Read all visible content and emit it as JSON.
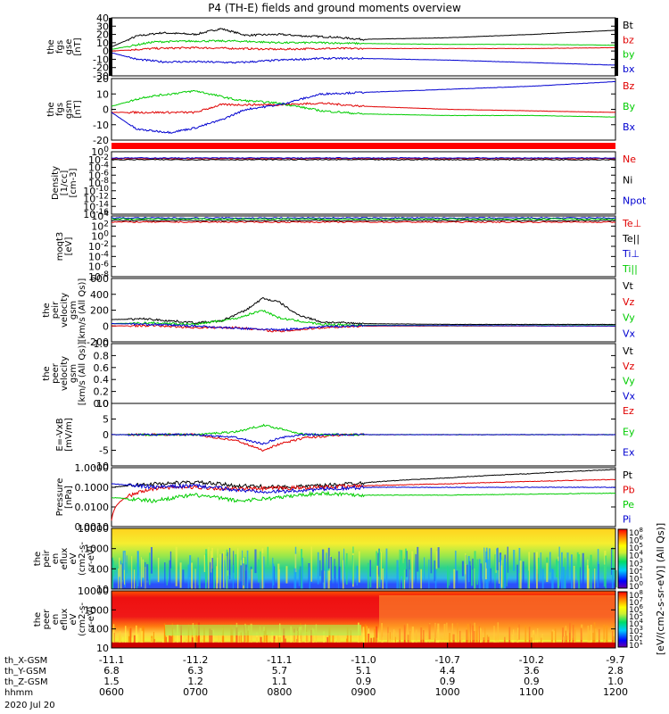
{
  "title": "P4 (TH-E) fields and ground moments overview",
  "colors": {
    "black": "#000000",
    "red": "#e00000",
    "green": "#00cc00",
    "blue": "#0000d0"
  },
  "x_axis": {
    "ticks": [
      {
        "t": "0600",
        "x": "-11.1",
        "y": "6.8",
        "z": "1.5"
      },
      {
        "t": "0700",
        "x": "-11.2",
        "y": "6.3",
        "z": "1.2"
      },
      {
        "t": "0800",
        "x": "-11.1",
        "y": "5.7",
        "z": "1.1"
      },
      {
        "t": "0900",
        "x": "-11.0",
        "y": "5.1",
        "z": "0.9"
      },
      {
        "t": "1000",
        "x": "-10.7",
        "y": "4.4",
        "z": "0.9"
      },
      {
        "t": "1100",
        "x": "-10.2",
        "y": "3.6",
        "z": "0.9"
      },
      {
        "t": "1200",
        "x": "-9.7",
        "y": "2.8",
        "z": "1.0"
      }
    ],
    "row_labels": [
      "th_X-GSM",
      "th_Y-GSM",
      "th_Z-GSM",
      "hhmm",
      "2020 Jul 20"
    ]
  },
  "colorbar": {
    "label": "[eV/(cm2-s-sr-eV)] (All Qs)]",
    "top_ticks": [
      "10^8",
      "10^6",
      "10^5",
      "10^4",
      "10^3",
      "10^2",
      "10^1",
      "10^0"
    ],
    "bottom_ticks": [
      "10^8",
      "10^7",
      "10^6",
      "10^5",
      "10^4",
      "10^3",
      "10^2",
      "10^1"
    ]
  },
  "chart_data": [
    {
      "type": "line",
      "panel": "fgs_gse",
      "ylabel": [
        "the",
        "fgs",
        "gse",
        "[nT]"
      ],
      "ylim": [
        -30,
        40
      ],
      "yticks": [
        "40",
        "30",
        "20",
        "10",
        "0",
        "-10",
        "-20",
        "-30"
      ],
      "series": [
        {
          "name": "Bt",
          "color": "#000000",
          "x": [
            6.0,
            6.3,
            6.6,
            7.0,
            7.3,
            7.6,
            8.0,
            8.3,
            8.6,
            9.0,
            10.0,
            11.0,
            12.0
          ],
          "y": [
            5,
            18,
            22,
            20,
            27,
            19,
            20,
            18,
            17,
            14,
            16,
            20,
            25
          ]
        },
        {
          "name": "bz",
          "color": "#e00000",
          "x": [
            6.0,
            6.5,
            7.0,
            7.5,
            8.0,
            8.5,
            9.0,
            10.0,
            11.0,
            12.0
          ],
          "y": [
            0,
            3,
            4,
            3,
            2,
            3,
            3,
            3,
            3,
            4
          ]
        },
        {
          "name": "by",
          "color": "#00cc00",
          "x": [
            6.0,
            6.5,
            7.0,
            7.5,
            8.0,
            8.5,
            9.0,
            10.0,
            11.0,
            12.0
          ],
          "y": [
            2,
            11,
            12,
            12,
            10,
            10,
            9,
            8,
            8,
            7
          ]
        },
        {
          "name": "bx",
          "color": "#0000d0",
          "x": [
            6.0,
            6.3,
            6.6,
            7.0,
            7.5,
            8.0,
            8.5,
            9.0,
            10.0,
            11.0,
            12.0
          ],
          "y": [
            -2,
            -10,
            -13,
            -13,
            -14,
            -11,
            -9,
            -9,
            -11,
            -14,
            -17
          ]
        }
      ]
    },
    {
      "type": "line",
      "panel": "fgs_gsm",
      "ylabel": [
        "the",
        "fgs",
        "gsm",
        "[nT]"
      ],
      "ylim": [
        -20,
        20
      ],
      "yticks": [
        "20",
        "10",
        "0",
        "-10",
        "-20"
      ],
      "series": [
        {
          "name": "Bz",
          "color": "#e00000",
          "x": [
            6.0,
            6.5,
            7.0,
            7.3,
            7.6,
            8.0,
            8.5,
            9.0,
            10.0,
            11.0,
            12.0
          ],
          "y": [
            -2,
            -2,
            -2,
            3,
            3,
            3,
            4,
            2,
            0,
            -1,
            -2
          ]
        },
        {
          "name": "By",
          "color": "#00cc00",
          "x": [
            6.0,
            6.4,
            7.0,
            7.5,
            8.0,
            8.5,
            9.0,
            10.0,
            11.0,
            12.0
          ],
          "y": [
            2,
            8,
            12,
            6,
            4,
            -1,
            -3,
            -4,
            -4,
            -5
          ]
        },
        {
          "name": "Bx",
          "color": "#0000d0",
          "x": [
            6.0,
            6.3,
            6.7,
            7.0,
            7.3,
            7.6,
            8.0,
            8.5,
            9.0,
            10.0,
            11.0,
            12.0
          ],
          "y": [
            -2,
            -13,
            -15,
            -12,
            -7,
            0,
            3,
            10,
            11,
            13,
            15,
            18
          ]
        }
      ]
    },
    {
      "type": "line",
      "panel": "density",
      "ylabel": [
        "Density",
        "[1/cc]",
        "[cm-3]"
      ],
      "ylim_log": [
        -16,
        2
      ],
      "yticks": [
        "10^0",
        "10^-2",
        "10^-4",
        "10^-6",
        "10^-8",
        "10^-10",
        "10^-12",
        "10^-14",
        "10^-16"
      ],
      "series": [
        {
          "name": "Ne",
          "color": "#e00000",
          "level": 0.0
        },
        {
          "name": "Ni",
          "color": "#000000",
          "level": -0.3
        },
        {
          "name": "Npot",
          "color": "#0000d0",
          "level": 0.2
        }
      ]
    },
    {
      "type": "line",
      "panel": "temperature",
      "ylabel": [
        "moqt3",
        "[eV]"
      ],
      "ylim_log": [
        -8,
        4
      ],
      "yticks": [
        "10^4",
        "10^2",
        "10^0",
        "10^-2",
        "10^-4",
        "10^-6",
        "10^-8"
      ],
      "series": [
        {
          "name": "Te⊥",
          "color": "#e00000",
          "level": 2.8
        },
        {
          "name": "Te||",
          "color": "#000000",
          "level": 3.1
        },
        {
          "name": "Ti⊥",
          "color": "#0000d0",
          "level": 3.6
        },
        {
          "name": "Ti||",
          "color": "#00cc00",
          "level": 3.4
        }
      ]
    },
    {
      "type": "line",
      "panel": "peir_velocity",
      "ylabel": [
        "the",
        "peir",
        "velocity",
        "gsm",
        "[km/s (All Qs)]"
      ],
      "ylim": [
        -200,
        600
      ],
      "yticks": [
        "600",
        "400",
        "200",
        "0",
        "-200"
      ],
      "series": [
        {
          "name": "Vt",
          "color": "#000000",
          "x": [
            6.0,
            6.4,
            7.0,
            7.3,
            7.6,
            7.8,
            8.0,
            8.2,
            8.5,
            9.0,
            10.0,
            11.0,
            12.0
          ],
          "y": [
            80,
            90,
            40,
            60,
            200,
            350,
            300,
            150,
            50,
            30,
            20,
            20,
            20
          ]
        },
        {
          "name": "Vz",
          "color": "#e00000",
          "x": [
            6.0,
            6.5,
            7.0,
            7.5,
            8.0,
            8.5,
            9.0,
            10.0,
            12.0
          ],
          "y": [
            0,
            5,
            -20,
            -20,
            -70,
            -20,
            0,
            0,
            0
          ]
        },
        {
          "name": "Vy",
          "color": "#00cc00",
          "x": [
            6.0,
            6.5,
            7.0,
            7.5,
            7.8,
            8.0,
            8.5,
            9.0,
            10.0,
            12.0
          ],
          "y": [
            30,
            40,
            20,
            100,
            200,
            100,
            20,
            10,
            5,
            5
          ]
        },
        {
          "name": "Vx",
          "color": "#0000d0",
          "x": [
            6.0,
            6.5,
            7.0,
            7.5,
            8.0,
            8.5,
            9.0,
            10.0,
            12.0
          ],
          "y": [
            30,
            20,
            0,
            -30,
            -50,
            -10,
            5,
            5,
            0
          ]
        }
      ]
    },
    {
      "type": "line",
      "panel": "peer_velocity",
      "ylabel": [
        "the",
        "peer",
        "velocity",
        "gsm",
        "[km/s (All Qs)]"
      ],
      "ylim": [
        0,
        1
      ],
      "yticks": [
        "1.0",
        "0.8",
        "0.6",
        "0.4",
        "0.2",
        "0.0"
      ],
      "series": [
        {
          "name": "Vt",
          "color": "#000000"
        },
        {
          "name": "Vz",
          "color": "#e00000"
        },
        {
          "name": "Vy",
          "color": "#00cc00"
        },
        {
          "name": "Vx",
          "color": "#0000d0"
        }
      ]
    },
    {
      "type": "line",
      "panel": "efield",
      "ylabel": [
        "E=-VxB",
        "[mV/m]"
      ],
      "ylim": [
        -10,
        10
      ],
      "yticks": [
        "10",
        "5",
        "0",
        "-5",
        "-10"
      ],
      "series": [
        {
          "name": "Ez",
          "color": "#e00000",
          "x": [
            6.0,
            7.0,
            7.5,
            7.8,
            8.0,
            8.3,
            8.8,
            12.0
          ],
          "y": [
            0,
            0,
            -2,
            -5,
            -3,
            -1,
            0,
            0
          ]
        },
        {
          "name": "Ey",
          "color": "#00cc00",
          "x": [
            6.0,
            7.0,
            7.5,
            7.8,
            8.0,
            8.3,
            8.8,
            12.0
          ],
          "y": [
            0,
            0,
            1,
            3,
            2,
            0,
            0,
            0
          ]
        },
        {
          "name": "Ex",
          "color": "#0000d0",
          "x": [
            6.0,
            7.0,
            7.5,
            7.8,
            8.0,
            8.3,
            8.8,
            12.0
          ],
          "y": [
            0,
            0,
            -1,
            -3,
            -1,
            0,
            0,
            0
          ]
        }
      ]
    },
    {
      "type": "line",
      "panel": "pressure",
      "ylabel": [
        "Pressure",
        "[nPa]"
      ],
      "ylim_log": [
        -3,
        0
      ],
      "yticks": [
        "1.0000",
        "0.1000",
        "0.0100",
        "0.0010"
      ],
      "series": [
        {
          "name": "Pt",
          "color": "#000000",
          "x": [
            6.0,
            6.5,
            7.0,
            7.5,
            8.0,
            8.5,
            9.0,
            10.0,
            11.0,
            12.0
          ],
          "y": [
            0.1,
            0.15,
            0.18,
            0.12,
            0.1,
            0.12,
            0.17,
            0.3,
            0.5,
            0.8
          ]
        },
        {
          "name": "Pb",
          "color": "#e00000",
          "x": [
            6.0,
            6.3,
            6.6,
            7.0,
            7.5,
            8.0,
            8.5,
            9.0,
            10.0,
            11.0,
            12.0
          ],
          "y": [
            0.002,
            0.05,
            0.1,
            0.1,
            0.08,
            0.09,
            0.1,
            0.12,
            0.15,
            0.2,
            0.25
          ]
        },
        {
          "name": "Pe",
          "color": "#00cc00",
          "x": [
            6.0,
            6.5,
            7.0,
            7.5,
            8.0,
            8.5,
            9.0,
            10.0,
            11.0,
            12.0
          ],
          "y": [
            0.03,
            0.02,
            0.04,
            0.02,
            0.03,
            0.05,
            0.04,
            0.04,
            0.045,
            0.05
          ]
        },
        {
          "name": "Pi",
          "color": "#0000d0",
          "x": [
            6.0,
            6.5,
            7.0,
            7.5,
            8.0,
            8.5,
            9.0,
            10.0,
            11.0,
            12.0
          ],
          "y": [
            0.15,
            0.1,
            0.12,
            0.07,
            0.06,
            0.08,
            0.1,
            0.1,
            0.1,
            0.1
          ]
        }
      ]
    },
    {
      "type": "heatmap",
      "panel": "peir_eflux",
      "ylabel": [
        "the",
        "peir",
        "en",
        "eflux",
        "eV",
        "(cm2-s-",
        "sr-eV)"
      ],
      "yticks": [
        "10000",
        "1000",
        "100",
        "10"
      ],
      "ylim_log": [
        0.7,
        4.3
      ]
    },
    {
      "type": "heatmap",
      "panel": "peer_eflux",
      "ylabel": [
        "the",
        "peer",
        "en",
        "eflux",
        "eV",
        "(cm2-s-",
        "sr-eV)"
      ],
      "yticks": [
        "10000",
        "1000",
        "100",
        "10"
      ],
      "ylim_log": [
        0.7,
        4.3
      ]
    }
  ]
}
